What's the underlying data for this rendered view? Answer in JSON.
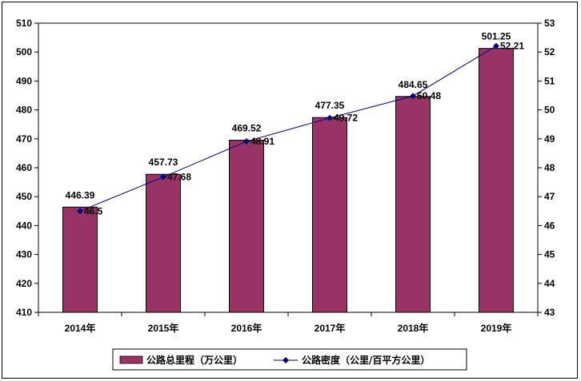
{
  "chart_data": {
    "type": "bar+line",
    "categories": [
      "2014年",
      "2015年",
      "2016年",
      "2017年",
      "2018年",
      "2019年"
    ],
    "series": [
      {
        "name": "公路总里程（万公里）",
        "type": "bar",
        "axis": "left",
        "color": "#993366",
        "values": [
          446.39,
          457.73,
          469.52,
          477.35,
          484.65,
          501.25
        ],
        "labels": [
          "446.39",
          "457.73",
          "469.52",
          "477.35",
          "484.65",
          "501.25"
        ]
      },
      {
        "name": "公路密度（公里/百平方公里）",
        "type": "line",
        "axis": "right",
        "color": "#000080",
        "values": [
          46.5,
          47.68,
          48.91,
          49.72,
          50.48,
          52.21
        ],
        "labels": [
          "46.5",
          "47.68",
          "48.91",
          "49.72",
          "50.48",
          "52.21"
        ]
      }
    ],
    "y_left": {
      "min": 410,
      "max": 510,
      "step": 10,
      "ticks": [
        "410",
        "420",
        "430",
        "440",
        "450",
        "460",
        "470",
        "480",
        "490",
        "500",
        "510"
      ]
    },
    "y_right": {
      "min": 43,
      "max": 53,
      "step": 1,
      "ticks": [
        "43",
        "44",
        "45",
        "46",
        "47",
        "48",
        "49",
        "50",
        "51",
        "52",
        "53"
      ]
    },
    "grid": false,
    "legend_position": "bottom"
  }
}
